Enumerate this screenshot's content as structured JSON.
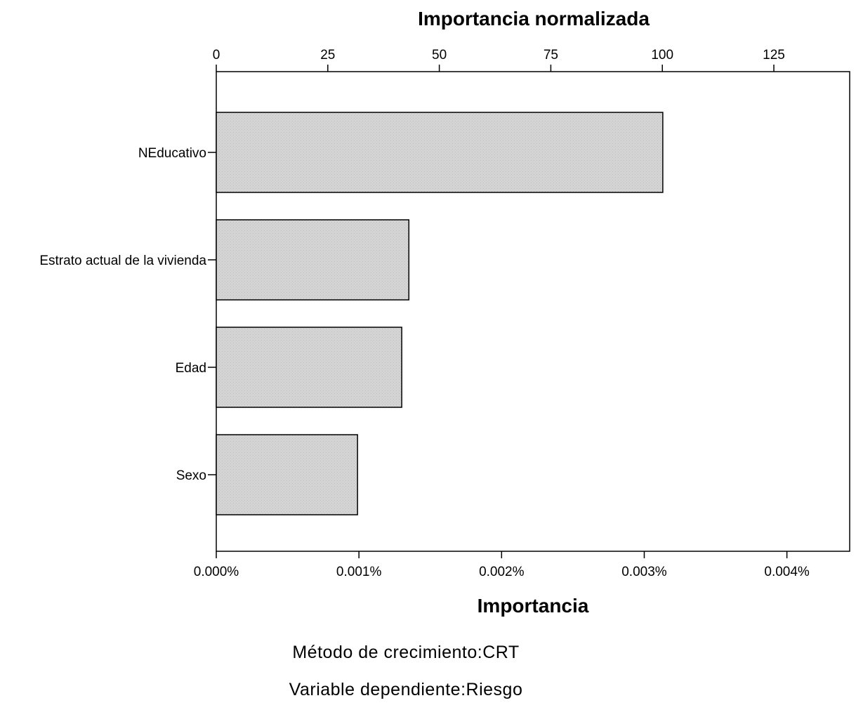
{
  "chart_data": {
    "type": "bar",
    "orientation": "horizontal",
    "categories": [
      "NEducativo",
      "Estrato actual de la vivienda",
      "Edad",
      "Sexo"
    ],
    "values": [
      0.00313,
      0.00135,
      0.0013,
      0.00099
    ],
    "normalized_values": [
      100,
      43.1,
      41.5,
      31.6
    ],
    "x_top": {
      "label": "Importancia normalizada",
      "ticks": [
        "0",
        "25",
        "50",
        "75",
        "100",
        "125"
      ],
      "tick_values": [
        0,
        25,
        50,
        75,
        100,
        125
      ],
      "range": [
        0,
        142
      ]
    },
    "x_bottom": {
      "label": "Importancia",
      "ticks": [
        "0.000%",
        "0.001%",
        "0.002%",
        "0.003%",
        "0.004%"
      ],
      "tick_values": [
        0,
        0.001,
        0.002,
        0.003,
        0.004
      ],
      "range": [
        0,
        0.00444
      ]
    },
    "grid": false,
    "legend": "none",
    "bar_color": "#d3d3d3",
    "bar_edge_color": "#000000",
    "footnotes": [
      "Método de crecimiento:CRT",
      "Variable dependiente:Riesgo"
    ]
  }
}
